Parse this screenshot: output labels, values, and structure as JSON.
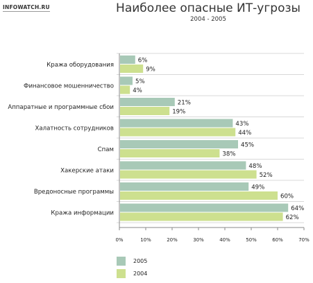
{
  "brand": "INFOWATCH.RU",
  "colors": {
    "s2005": "#a8c9b7",
    "s2004": "#cde08f",
    "grid": "#d8d8d8",
    "axis": "#8a8a8a"
  },
  "chart_data": {
    "type": "bar",
    "orientation": "horizontal",
    "title": "Наиболее опасные ИТ-угрозы",
    "subtitle": "2004 - 2005",
    "categories": [
      "Кража оборудования",
      "Финансовое мошенничество",
      "Аппаратные и программные сбои",
      "Халатность сотрудников",
      "Спам",
      "Хакерские атаки",
      "Вредоносные программы",
      "Кража информации"
    ],
    "series": [
      {
        "name": "2005",
        "values": [
          6,
          5,
          21,
          43,
          45,
          48,
          49,
          64
        ]
      },
      {
        "name": "2004",
        "values": [
          9,
          4,
          19,
          44,
          38,
          52,
          60,
          62
        ]
      }
    ],
    "value_suffix": "%",
    "xlim": [
      0,
      70
    ],
    "xticks": [
      "0%",
      "10%",
      "20%",
      "30%",
      "40%",
      "50%",
      "60%",
      "70%"
    ],
    "legend_position": "bottom-left",
    "grid": false
  }
}
